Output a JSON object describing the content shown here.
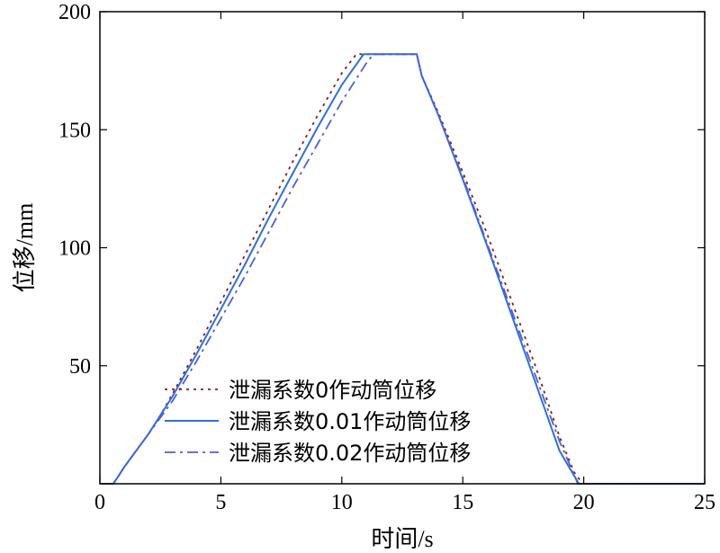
{
  "chart_data": {
    "type": "line",
    "xlabel": "时间/s",
    "ylabel": "位移/mm",
    "xlim": [
      0,
      25
    ],
    "ylim": [
      0,
      200
    ],
    "xticks": [
      0,
      5,
      10,
      15,
      20,
      25
    ],
    "yticks": [
      50,
      100,
      150,
      200
    ],
    "grid": false,
    "legend_position": "lower-center",
    "series": [
      {
        "name": "泄漏系数0作动筒位移",
        "color": "#8B1A1A",
        "dash": "dotted",
        "points": [
          [
            0,
            0
          ],
          [
            0.55,
            0
          ],
          [
            0.75,
            3
          ],
          [
            1.0,
            7
          ],
          [
            1.5,
            14
          ],
          [
            2.0,
            21
          ],
          [
            2.5,
            29
          ],
          [
            3.0,
            38
          ],
          [
            4.0,
            57
          ],
          [
            5.0,
            77
          ],
          [
            6.0,
            97
          ],
          [
            7.0,
            117
          ],
          [
            8.0,
            137
          ],
          [
            9.0,
            156
          ],
          [
            10.0,
            174
          ],
          [
            10.6,
            182
          ],
          [
            13.1,
            182
          ],
          [
            13.3,
            173
          ],
          [
            14.0,
            157
          ],
          [
            15.0,
            132
          ],
          [
            16.0,
            106
          ],
          [
            17.0,
            78
          ],
          [
            18.0,
            50
          ],
          [
            19.0,
            20
          ],
          [
            19.6,
            5
          ],
          [
            19.95,
            0
          ],
          [
            25,
            0
          ]
        ]
      },
      {
        "name": "泄漏系数0.01作动筒位移",
        "color": "#2F6FDB",
        "dash": "solid",
        "points": [
          [
            0,
            0
          ],
          [
            0.55,
            0
          ],
          [
            0.75,
            3
          ],
          [
            1.0,
            7
          ],
          [
            1.5,
            14
          ],
          [
            2.0,
            21
          ],
          [
            2.5,
            29
          ],
          [
            3.0,
            37
          ],
          [
            4.0,
            55
          ],
          [
            5.0,
            74
          ],
          [
            6.0,
            93
          ],
          [
            7.0,
            113
          ],
          [
            8.0,
            132
          ],
          [
            9.0,
            151
          ],
          [
            10.0,
            169
          ],
          [
            10.9,
            182
          ],
          [
            13.1,
            182
          ],
          [
            13.3,
            173
          ],
          [
            14.0,
            156
          ],
          [
            15.0,
            129
          ],
          [
            16.0,
            101
          ],
          [
            17.0,
            72
          ],
          [
            18.0,
            43
          ],
          [
            19.0,
            14
          ],
          [
            19.8,
            0
          ],
          [
            25,
            0
          ]
        ]
      },
      {
        "name": "泄漏系数0.02作动筒位移",
        "color": "#4E5FD6",
        "dash": "dashdot",
        "points": [
          [
            0,
            0
          ],
          [
            0.55,
            0
          ],
          [
            0.75,
            3
          ],
          [
            1.0,
            7
          ],
          [
            1.5,
            14
          ],
          [
            2.0,
            21
          ],
          [
            2.5,
            28
          ],
          [
            3.0,
            35
          ],
          [
            4.0,
            52
          ],
          [
            5.0,
            70
          ],
          [
            6.0,
            88
          ],
          [
            7.0,
            107
          ],
          [
            8.0,
            126
          ],
          [
            9.0,
            144
          ],
          [
            10.0,
            162
          ],
          [
            11.0,
            178
          ],
          [
            11.3,
            182
          ],
          [
            13.1,
            182
          ],
          [
            13.3,
            173
          ],
          [
            14.0,
            156
          ],
          [
            15.0,
            130
          ],
          [
            16.0,
            102
          ],
          [
            17.0,
            74
          ],
          [
            18.0,
            46
          ],
          [
            19.0,
            18
          ],
          [
            19.6,
            4
          ],
          [
            19.75,
            0
          ],
          [
            25,
            0
          ]
        ]
      }
    ]
  }
}
